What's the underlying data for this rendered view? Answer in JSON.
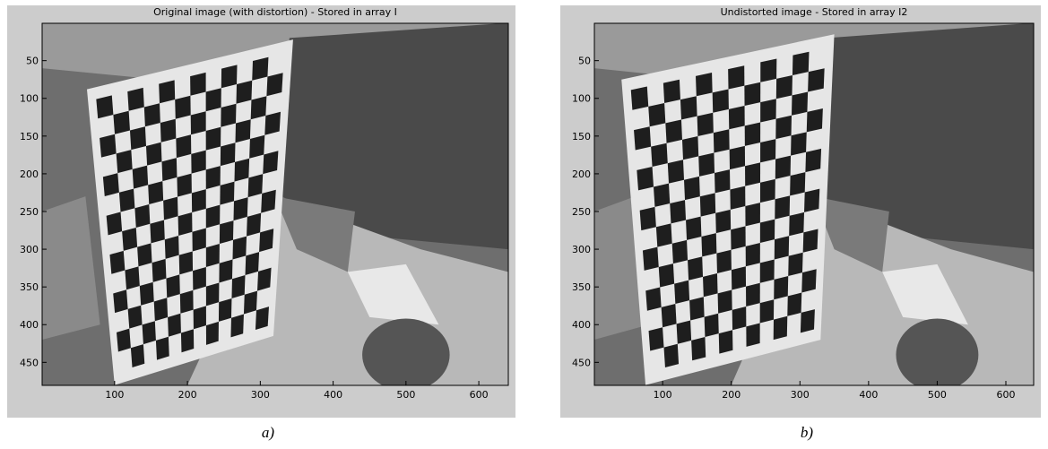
{
  "panels": [
    {
      "title": "Original image (with distortion) - Stored in array I",
      "xlim": [
        0.5,
        640.5
      ],
      "ylim": [
        0.5,
        480.5
      ],
      "xticks": [
        100,
        200,
        300,
        400,
        500,
        600
      ],
      "yticks": [
        50,
        100,
        150,
        200,
        250,
        300,
        350,
        400,
        450
      ],
      "caption": "a)"
    },
    {
      "title": "Undistorted image - Stored in array I2",
      "xlim": [
        0.5,
        640.5
      ],
      "ylim": [
        0.5,
        480.5
      ],
      "xticks": [
        100,
        200,
        300,
        400,
        500,
        600
      ],
      "yticks": [
        50,
        100,
        150,
        200,
        250,
        300,
        350,
        400,
        450
      ],
      "caption": "b)"
    }
  ]
}
